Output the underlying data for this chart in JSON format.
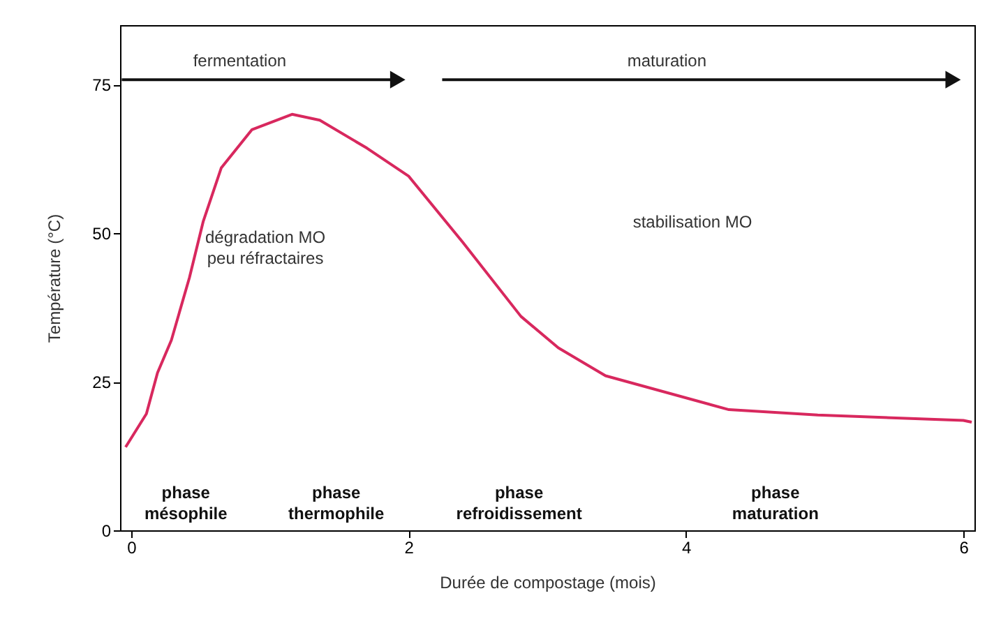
{
  "chart_data": {
    "type": "line",
    "xlabel": "Durée de compostage (mois)",
    "ylabel": "Température (°C)",
    "x": [
      -0.04,
      0.11,
      0.19,
      0.29,
      0.42,
      0.52,
      0.65,
      0.87,
      1.16,
      1.36,
      1.7,
      2.0,
      2.39,
      2.81,
      3.08,
      3.42,
      4.31,
      4.95,
      6.0,
      6.06
    ],
    "series": [
      {
        "color": "#d8285e",
        "values": [
          14,
          19.6,
          26.5,
          32,
          42.5,
          52,
          61,
          67.4,
          70,
          69,
          64.3,
          59.6,
          48.5,
          36,
          30.7,
          26,
          20.3,
          19.4,
          18.5,
          18.2
        ]
      }
    ],
    "xlim": [
      -0.08,
      6.08
    ],
    "ylim": [
      0,
      85
    ],
    "xticks": [
      0,
      2,
      4,
      6
    ],
    "yticks": [
      0,
      25,
      50,
      75
    ],
    "grid": false,
    "marker": "none",
    "line_style": "solid",
    "annotations": [
      "fermentation",
      "maturation",
      "dégradation MO\npeu réfractaires",
      "stabilisation MO",
      "phase\nmésophile",
      "phase\nthermophile",
      "phase\nrefroidissement",
      "phase\nmaturation"
    ]
  }
}
